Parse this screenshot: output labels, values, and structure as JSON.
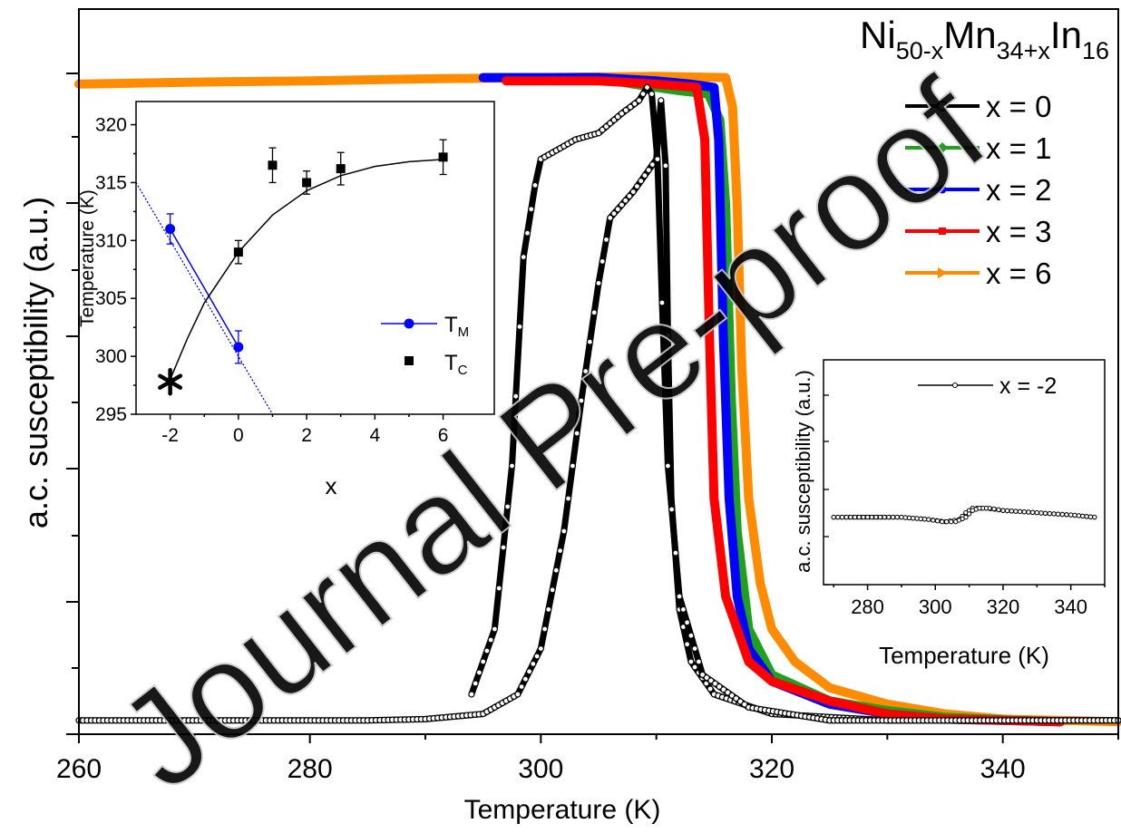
{
  "chart_data": [
    {
      "id": "main",
      "type": "line",
      "title": "",
      "annotation": {
        "base": "Ni",
        "sub1": "50-x",
        "mid1": "Mn",
        "sub2": "34+x",
        "mid2": "In",
        "sub3": "16"
      },
      "xlabel": "Temperature (K)",
      "ylabel": "a.c. susceptibility (a.u.)",
      "xlim": [
        260,
        350
      ],
      "ylim": [
        0,
        1.0
      ],
      "xticks": [
        260,
        280,
        300,
        320,
        340
      ],
      "ytick_labels": false,
      "legend_position": "top-right",
      "series": [
        {
          "name": "x = 0",
          "color": "#000000",
          "marker": "open-circle",
          "heating": [
            [
              260,
              0.01
            ],
            [
              285,
              0.01
            ],
            [
              290,
              0.012
            ],
            [
              295,
              0.02
            ],
            [
              298,
              0.05
            ],
            [
              300,
              0.12
            ],
            [
              302,
              0.3
            ],
            [
              303.5,
              0.5
            ],
            [
              305,
              0.68
            ],
            [
              306,
              0.78
            ],
            [
              308,
              0.82
            ],
            [
              310,
              0.87
            ],
            [
              310.4,
              0.96
            ],
            [
              310.8,
              0.86
            ],
            [
              311,
              0.6
            ],
            [
              311.3,
              0.35
            ],
            [
              312,
              0.18
            ],
            [
              313,
              0.1
            ],
            [
              315,
              0.05
            ],
            [
              320,
              0.02
            ],
            [
              330,
              0.01
            ],
            [
              350,
              0.01
            ]
          ],
          "cooling": [
            [
              294,
              0.05
            ],
            [
              296,
              0.15
            ],
            [
              297.5,
              0.4
            ],
            [
              298.5,
              0.72
            ],
            [
              299.5,
              0.83
            ],
            [
              300,
              0.87
            ],
            [
              303,
              0.9
            ],
            [
              305,
              0.91
            ],
            [
              307,
              0.94
            ],
            [
              308.5,
              0.96
            ],
            [
              309.2,
              0.98
            ],
            [
              309.6,
              0.97
            ],
            [
              310.1,
              0.87
            ],
            [
              310.5,
              0.65
            ],
            [
              311,
              0.4
            ],
            [
              312,
              0.2
            ],
            [
              314,
              0.08
            ],
            [
              318,
              0.03
            ],
            [
              325,
              0.01
            ],
            [
              350,
              0.01
            ]
          ]
        },
        {
          "name": "x = 1",
          "color": "#1fa01f",
          "marker": "diamond",
          "data": [
            [
              295,
              0.995
            ],
            [
              305,
              0.995
            ],
            [
              308,
              0.985
            ],
            [
              312,
              0.975
            ],
            [
              314.5,
              0.97
            ],
            [
              315.5,
              0.93
            ],
            [
              316,
              0.8
            ],
            [
              316.5,
              0.5
            ],
            [
              317,
              0.3
            ],
            [
              318,
              0.15
            ],
            [
              320,
              0.08
            ],
            [
              325,
              0.04
            ],
            [
              330,
              0.025
            ],
            [
              335,
              0.015
            ],
            [
              341,
              0.01
            ],
            [
              345,
              0.008
            ]
          ]
        },
        {
          "name": "x = 2",
          "color": "#0000ff",
          "marker": "dot",
          "data": [
            [
              295,
              0.995
            ],
            [
              305,
              0.995
            ],
            [
              310,
              0.99
            ],
            [
              313,
              0.985
            ],
            [
              315,
              0.98
            ],
            [
              315.4,
              0.9
            ],
            [
              315.8,
              0.6
            ],
            [
              316.3,
              0.35
            ],
            [
              317,
              0.2
            ],
            [
              318,
              0.12
            ],
            [
              320,
              0.07
            ],
            [
              325,
              0.035
            ],
            [
              330,
              0.02
            ],
            [
              335,
              0.012
            ],
            [
              345,
              0.008
            ]
          ]
        },
        {
          "name": "x = 3",
          "color": "#ff0000",
          "marker": "square",
          "data": [
            [
              297,
              0.99
            ],
            [
              305,
              0.99
            ],
            [
              310,
              0.985
            ],
            [
              313.5,
              0.98
            ],
            [
              314.2,
              0.9
            ],
            [
              314.6,
              0.6
            ],
            [
              315,
              0.35
            ],
            [
              316,
              0.2
            ],
            [
              318,
              0.1
            ],
            [
              320,
              0.07
            ],
            [
              325,
              0.04
            ],
            [
              330,
              0.02
            ],
            [
              335,
              0.012
            ],
            [
              345,
              0.008
            ]
          ]
        },
        {
          "name": "x = 6",
          "color": "#ff8c00",
          "marker": "triangle-right",
          "data": [
            [
              260,
              0.985
            ],
            [
              270,
              0.988
            ],
            [
              280,
              0.99
            ],
            [
              290,
              0.993
            ],
            [
              300,
              0.995
            ],
            [
              310,
              0.997
            ],
            [
              316,
              0.995
            ],
            [
              316.6,
              0.95
            ],
            [
              317,
              0.8
            ],
            [
              317.4,
              0.55
            ],
            [
              318,
              0.35
            ],
            [
              319,
              0.22
            ],
            [
              320,
              0.15
            ],
            [
              322,
              0.1
            ],
            [
              325,
              0.06
            ],
            [
              330,
              0.035
            ],
            [
              335,
              0.02
            ],
            [
              340,
              0.012
            ],
            [
              345,
              0.01
            ],
            [
              350,
              0.008
            ]
          ]
        }
      ]
    },
    {
      "id": "inset_left",
      "type": "scatter",
      "xlabel": "x",
      "ylabel": "Temperature (K)",
      "xlim": [
        -3,
        7.5
      ],
      "ylim": [
        295,
        322
      ],
      "xticks": [
        -2,
        0,
        2,
        4,
        6
      ],
      "yticks": [
        295,
        300,
        305,
        310,
        315,
        320
      ],
      "legend_position": "center-right",
      "series": [
        {
          "name": "T_M",
          "label_main": "T",
          "label_sub": "M",
          "color": "#0000ff",
          "marker": "circle",
          "points": [
            {
              "x": -2,
              "y": 311,
              "err": 1.3
            },
            {
              "x": 0,
              "y": 300.8,
              "err": 1.4
            }
          ],
          "trend": [
            [
              -3,
              315
            ],
            [
              1,
              295
            ]
          ]
        },
        {
          "name": "T_C",
          "label_main": "T",
          "label_sub": "C",
          "color": "#000000",
          "marker": "square",
          "points": [
            {
              "x": 0,
              "y": 309,
              "err": 1
            },
            {
              "x": 1,
              "y": 316.5,
              "err": 1.5
            },
            {
              "x": 2,
              "y": 315,
              "err": 1
            },
            {
              "x": 3,
              "y": 316.2,
              "err": 1.4
            },
            {
              "x": 6,
              "y": 317.2,
              "err": 1.5
            }
          ],
          "fit": [
            [
              -2,
              298
            ],
            [
              -1.5,
              301.5
            ],
            [
              -1,
              304.6
            ],
            [
              0,
              309
            ],
            [
              1,
              312.2
            ],
            [
              2,
              314.3
            ],
            [
              3,
              315.6
            ],
            [
              4,
              316.4
            ],
            [
              5,
              316.8
            ],
            [
              6,
              317
            ]
          ]
        }
      ],
      "extra_marker": {
        "x": -2,
        "y": 297.8,
        "symbol": "asterisk"
      }
    },
    {
      "id": "inset_right",
      "type": "line",
      "xlabel": "Temperature (K)",
      "ylabel": "a.c. susceptibility (a.u.)",
      "xlim": [
        267,
        350
      ],
      "ylim": [
        0,
        1
      ],
      "xticks": [
        280,
        300,
        320,
        340
      ],
      "legend_position": "top",
      "series": [
        {
          "name": "x = -2",
          "color": "#000000",
          "marker": "open-circle",
          "heating": [
            [
              270,
              0.3
            ],
            [
              290,
              0.3
            ],
            [
              298,
              0.29
            ],
            [
              303,
              0.28
            ],
            [
              307,
              0.29
            ],
            [
              309,
              0.32
            ],
            [
              311,
              0.34
            ],
            [
              315,
              0.34
            ],
            [
              320,
              0.33
            ],
            [
              330,
              0.32
            ],
            [
              340,
              0.31
            ],
            [
              347,
              0.3
            ]
          ],
          "cooling": [
            [
              347,
              0.3
            ],
            [
              340,
              0.31
            ],
            [
              330,
              0.32
            ],
            [
              320,
              0.33
            ],
            [
              316,
              0.34
            ],
            [
              313,
              0.34
            ],
            [
              311,
              0.33
            ],
            [
              309,
              0.3
            ],
            [
              306,
              0.28
            ],
            [
              302,
              0.28
            ],
            [
              298,
              0.29
            ],
            [
              290,
              0.3
            ],
            [
              280,
              0.3
            ],
            [
              270,
              0.3
            ]
          ]
        }
      ]
    }
  ],
  "watermark": "Journal Pre-proof"
}
